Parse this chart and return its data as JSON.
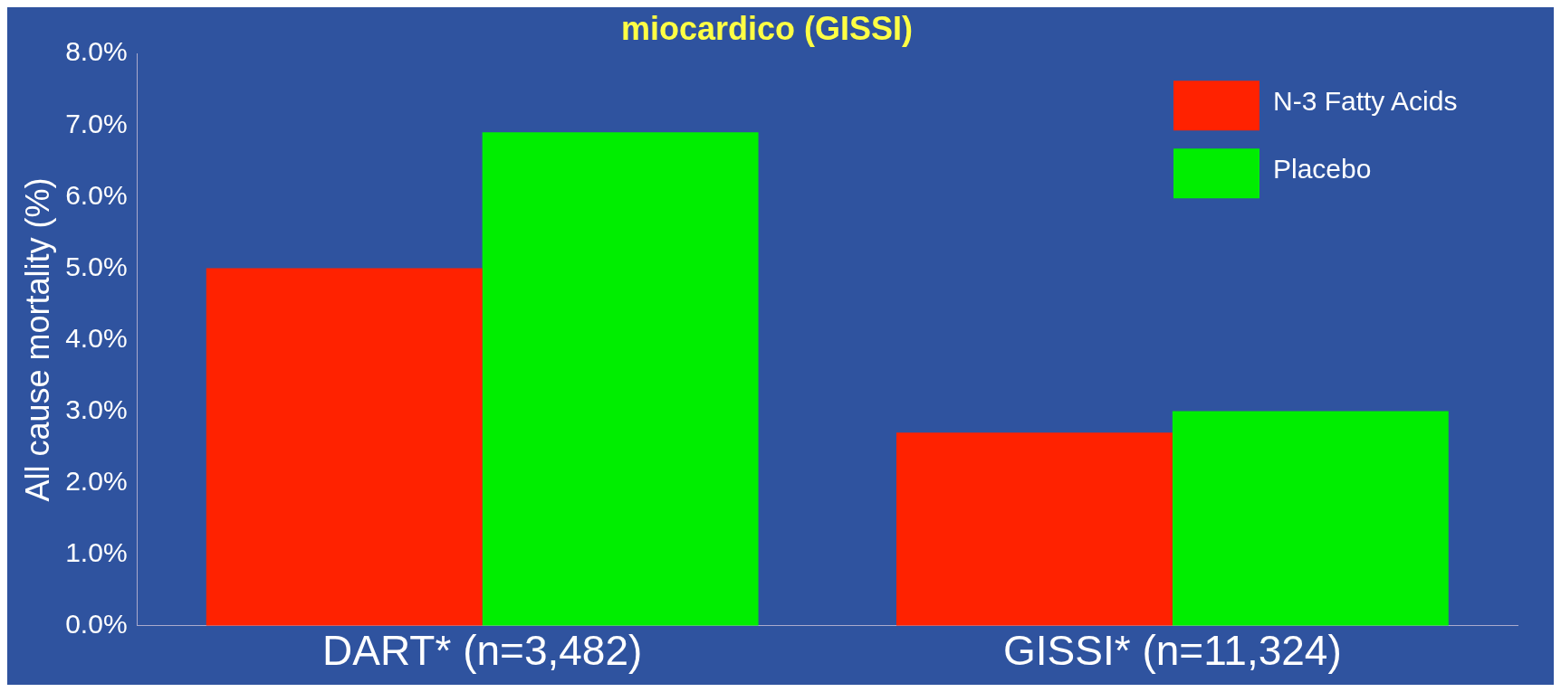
{
  "chart_data": {
    "type": "bar",
    "title": "miocardico (GISSI)",
    "ylabel": "All cause mortality (%)",
    "categories": [
      "DART* (n=3,482)",
      "GISSI* (n=11,324)"
    ],
    "series": [
      {
        "name": "N-3 Fatty Acids",
        "color": "#ff2200",
        "values": [
          5.0,
          2.7
        ]
      },
      {
        "name": "Placebo",
        "color": "#00ee00",
        "values": [
          6.9,
          3.0
        ]
      }
    ],
    "ylim": [
      0,
      8
    ],
    "yticks": [
      {
        "value": 0,
        "label": "0.0%"
      },
      {
        "value": 1,
        "label": "1.0%"
      },
      {
        "value": 2,
        "label": "2.0%"
      },
      {
        "value": 3,
        "label": "3.0%"
      },
      {
        "value": 4,
        "label": "4.0%"
      },
      {
        "value": 5,
        "label": "5.0%"
      },
      {
        "value": 6,
        "label": "6.0%"
      },
      {
        "value": 7,
        "label": "7.0%"
      },
      {
        "value": 8,
        "label": "8.0%"
      }
    ],
    "grid": false,
    "legend": "top right"
  }
}
